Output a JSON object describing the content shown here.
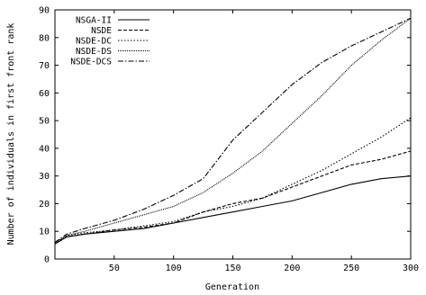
{
  "chart_data": {
    "type": "line",
    "title": "",
    "xlabel": "Generation",
    "ylabel": "Number of individuals in first front rank",
    "xlim": [
      0,
      300
    ],
    "ylim": [
      0,
      90
    ],
    "x_ticks": [
      50,
      100,
      150,
      200,
      250,
      300
    ],
    "y_ticks": [
      0,
      10,
      20,
      30,
      40,
      50,
      60,
      70,
      80,
      90
    ],
    "grid": false,
    "legend_position": "top-left",
    "x": [
      0,
      10,
      25,
      50,
      75,
      100,
      125,
      150,
      175,
      200,
      225,
      250,
      275,
      300
    ],
    "series": [
      {
        "name": "NSGA-II",
        "dash": "solid",
        "values": [
          5.5,
          8,
          9,
          10,
          11,
          13,
          15,
          17,
          19,
          21,
          24,
          27,
          29,
          30
        ]
      },
      {
        "name": "NSDE",
        "dash": "dashed",
        "values": [
          5.5,
          8,
          9,
          10.5,
          11.5,
          13,
          17,
          20,
          22,
          26,
          30,
          34,
          36,
          39
        ]
      },
      {
        "name": "NSDE-DC",
        "dash": "dotted",
        "values": [
          5.5,
          8.5,
          9.5,
          10.5,
          12,
          13.5,
          17,
          19,
          22,
          27,
          32,
          38,
          44,
          51
        ]
      },
      {
        "name": "NSDE-DS",
        "dash": "fine",
        "values": [
          6,
          8.5,
          10,
          13,
          16,
          19,
          24,
          31,
          39,
          49,
          59,
          70,
          79,
          87
        ]
      },
      {
        "name": "NSDE-DCS",
        "dash": "dashdot",
        "values": [
          6,
          9,
          11,
          14,
          18,
          23,
          29,
          43,
          53,
          63,
          71,
          77,
          82,
          87
        ]
      }
    ]
  }
}
